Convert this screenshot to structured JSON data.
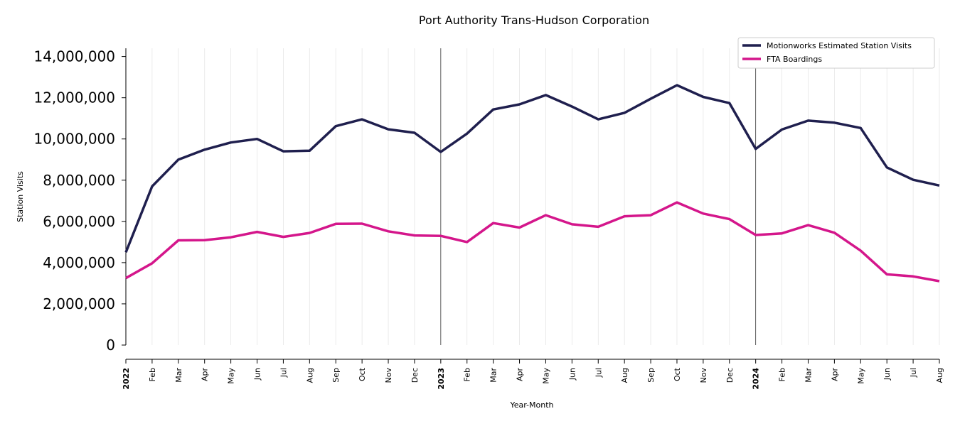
{
  "chart_data": {
    "type": "line",
    "title": "Port Authority Trans-Hudson Corporation",
    "xlabel": "Year-Month",
    "ylabel": "Station Visits",
    "ylim": [
      0,
      14400000
    ],
    "yticks": [
      0,
      2000000,
      4000000,
      6000000,
      8000000,
      10000000,
      12000000,
      14000000
    ],
    "ytick_labels": [
      "0",
      "2,000,000",
      "4,000,000",
      "6,000,000",
      "8,000,000",
      "10,000,000",
      "12,000,000",
      "14,000,000"
    ],
    "x": [
      "2022-01",
      "2022-02",
      "2022-03",
      "2022-04",
      "2022-05",
      "2022-06",
      "2022-07",
      "2022-08",
      "2022-09",
      "2022-10",
      "2022-11",
      "2022-12",
      "2023-01",
      "2023-02",
      "2023-03",
      "2023-04",
      "2023-05",
      "2023-06",
      "2023-07",
      "2023-08",
      "2023-09",
      "2023-10",
      "2023-11",
      "2023-12",
      "2024-01",
      "2024-02",
      "2024-03",
      "2024-04",
      "2024-05",
      "2024-06",
      "2024-07",
      "2024-08"
    ],
    "x_tick_labels": [
      "2022",
      "Feb",
      "Mar",
      "Apr",
      "May",
      "Jun",
      "Jul",
      "Aug",
      "Sep",
      "Oct",
      "Nov",
      "Dec",
      "2023",
      "Feb",
      "Mar",
      "Apr",
      "May",
      "Jun",
      "Jul",
      "Aug",
      "Sep",
      "Oct",
      "Nov",
      "Dec",
      "2024",
      "Feb",
      "Mar",
      "Apr",
      "May",
      "Jun",
      "Jul",
      "Aug"
    ],
    "year_markers": [
      "2023-01",
      "2024-01"
    ],
    "grid": "vertical",
    "legend_position": "top-right",
    "series": [
      {
        "name": "Motionworks Estimated Station Visits",
        "color": "#1f1f4e",
        "values": [
          4500000,
          7700000,
          9000000,
          9480000,
          9830000,
          10000000,
          9400000,
          9430000,
          10620000,
          10950000,
          10470000,
          10300000,
          9370000,
          10260000,
          11430000,
          11680000,
          12130000,
          11570000,
          10950000,
          11270000,
          11950000,
          12610000,
          12040000,
          11740000,
          9520000,
          10460000,
          10890000,
          10790000,
          10530000,
          8620000,
          8020000,
          7740000
        ]
      },
      {
        "name": "FTA Boardings",
        "color": "#d4168b",
        "values": [
          3250000,
          3970000,
          5080000,
          5090000,
          5230000,
          5490000,
          5250000,
          5440000,
          5880000,
          5890000,
          5520000,
          5320000,
          5300000,
          5000000,
          5920000,
          5700000,
          6300000,
          5860000,
          5740000,
          6250000,
          6300000,
          6920000,
          6380000,
          6110000,
          5340000,
          5420000,
          5820000,
          5450000,
          4580000,
          3430000,
          3330000,
          3100000
        ]
      }
    ]
  }
}
